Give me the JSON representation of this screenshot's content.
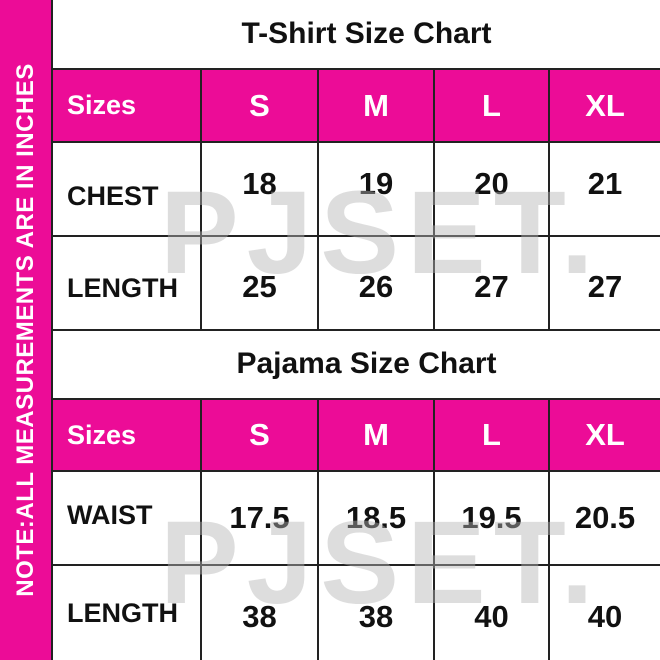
{
  "note": "NOTE:ALL MEASUREMENTS ARE IN INCHES",
  "watermark": "PJSET.",
  "accent_color": "#ec0c97",
  "tshirt": {
    "title": "T-Shirt Size Chart",
    "header": [
      "Sizes",
      "S",
      "M",
      "L",
      "XL"
    ],
    "rows": [
      [
        "CHEST",
        "18",
        "19",
        "20",
        "21"
      ],
      [
        "LENGTH",
        "25",
        "26",
        "27",
        "27"
      ]
    ]
  },
  "pajama": {
    "title": "Pajama Size Chart",
    "header": [
      "Sizes",
      "S",
      "M",
      "L",
      "XL"
    ],
    "rows": [
      [
        "WAIST",
        "17.5",
        "18.5",
        "19.5",
        "20.5"
      ],
      [
        "LENGTH",
        "38",
        "38",
        "40",
        "40"
      ]
    ]
  }
}
